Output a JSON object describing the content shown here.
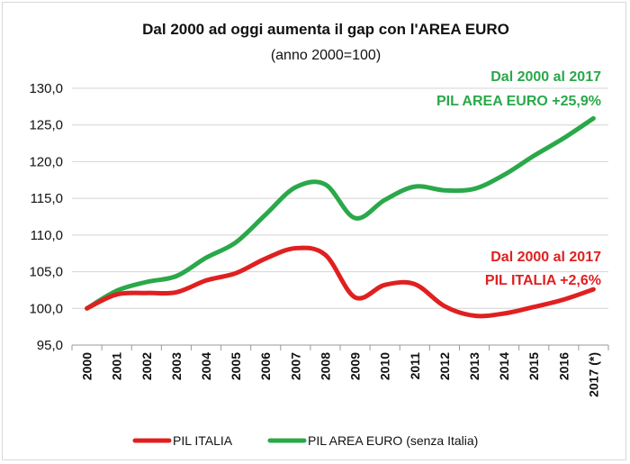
{
  "chart_data": {
    "type": "line",
    "title": "Dal 2000 ad oggi aumenta il gap con l'AREA EURO",
    "subtitle": "(anno 2000=100)",
    "categories": [
      "2000",
      "2001",
      "2002",
      "2003",
      "2004",
      "2005",
      "2006",
      "2007",
      "2008",
      "2009",
      "2010",
      "2011",
      "2012",
      "2013",
      "2014",
      "2015",
      "2016",
      "2017 (*)"
    ],
    "ylim": [
      95,
      130
    ],
    "yticks": [
      "95,0",
      "100,0",
      "105,0",
      "110,0",
      "115,0",
      "120,0",
      "125,0",
      "130,0"
    ],
    "grid": true,
    "legend_position": "bottom",
    "series": [
      {
        "name": "PIL ITALIA",
        "color": "#e02020",
        "values": [
          100.0,
          101.9,
          102.1,
          102.2,
          103.8,
          104.8,
          106.8,
          108.2,
          107.3,
          101.5,
          103.2,
          103.3,
          100.3,
          99.0,
          99.3,
          100.2,
          101.2,
          102.6
        ]
      },
      {
        "name": "PIL AREA EURO (senza Italia)",
        "color": "#2aa84a",
        "values": [
          100.0,
          102.4,
          103.6,
          104.4,
          106.9,
          109.0,
          112.8,
          116.5,
          116.9,
          112.3,
          114.8,
          116.6,
          116.1,
          116.3,
          118.2,
          120.8,
          123.2,
          125.9
        ]
      }
    ],
    "annotations": {
      "euro_line1": "Dal 2000 al 2017",
      "euro_line2": "PIL AREA EURO +25,9%",
      "italy_line1": "Dal 2000 al 2017",
      "italy_line2": "PIL ITALIA +2,6%"
    }
  }
}
